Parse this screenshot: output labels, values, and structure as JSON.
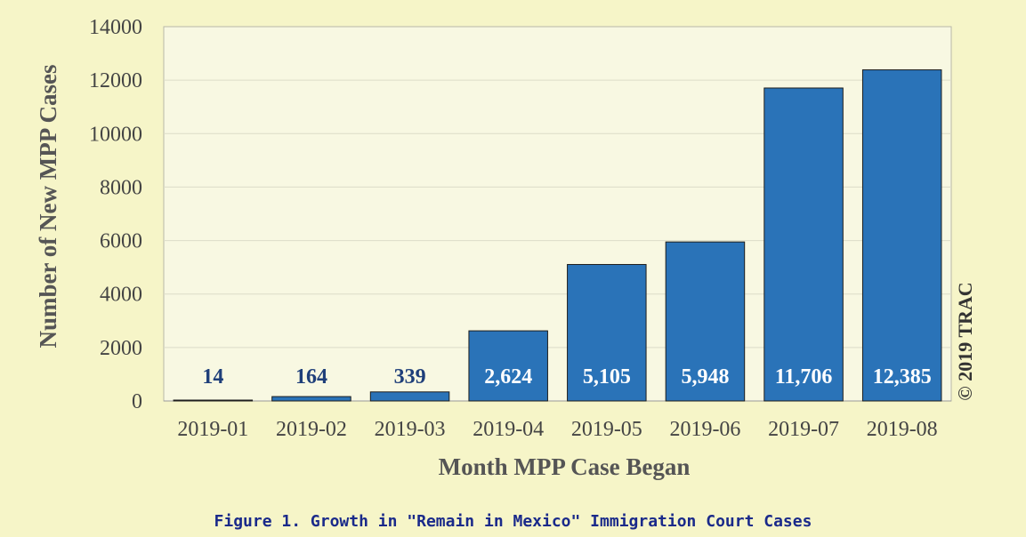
{
  "chart_data": {
    "type": "bar",
    "title": "",
    "xlabel": "Month MPP Case Began",
    "ylabel": "Number of New MPP Cases",
    "categories": [
      "2019-01",
      "2019-02",
      "2019-03",
      "2019-04",
      "2019-05",
      "2019-06",
      "2019-07",
      "2019-08"
    ],
    "values": [
      14,
      164,
      339,
      2624,
      5105,
      5948,
      11706,
      12385
    ],
    "data_labels": [
      "14",
      "164",
      "339",
      "2,624",
      "5,105",
      "5,948",
      "11,706",
      "12,385"
    ],
    "ylim": [
      0,
      14000
    ],
    "yticks": [
      0,
      2000,
      4000,
      6000,
      8000,
      10000,
      12000,
      14000
    ],
    "grid": true,
    "bar_color": "#2a73b8",
    "label_color_outside": "#1f3f7a",
    "label_color_inside": "#ffffff",
    "plot_background": "#f8f8e2"
  },
  "copyright": "© 2019 TRAC",
  "caption": "Figure 1. Growth in \"Remain in Mexico\" Immigration Court Cases",
  "caption_sub": ""
}
